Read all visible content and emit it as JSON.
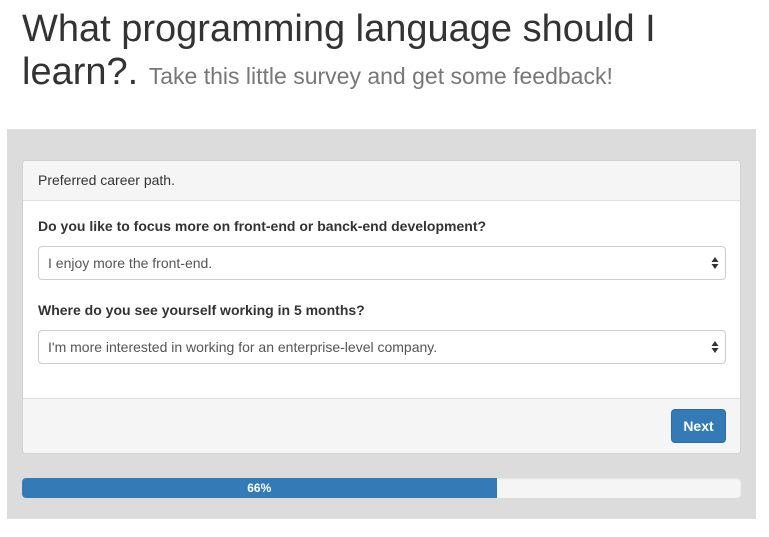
{
  "header": {
    "title": "What programming language should I learn?.",
    "subtitle": "Take this little survey and get some feedback!"
  },
  "panel": {
    "heading": "Preferred career path.",
    "questions": [
      {
        "label": "Do you like to focus more on front-end or banck-end development?",
        "selected": "I enjoy more the front-end."
      },
      {
        "label": "Where do you see yourself working in 5 months?",
        "selected": "I'm more interested in working for an enterprise-level company."
      }
    ],
    "next_label": "Next"
  },
  "progress": {
    "label": "66%",
    "fraction": 0.66
  },
  "colors": {
    "primary": "#337ab7",
    "well": "#dcdcdc"
  },
  "icons": {
    "select_arrow": "sort-arrows-icon"
  }
}
